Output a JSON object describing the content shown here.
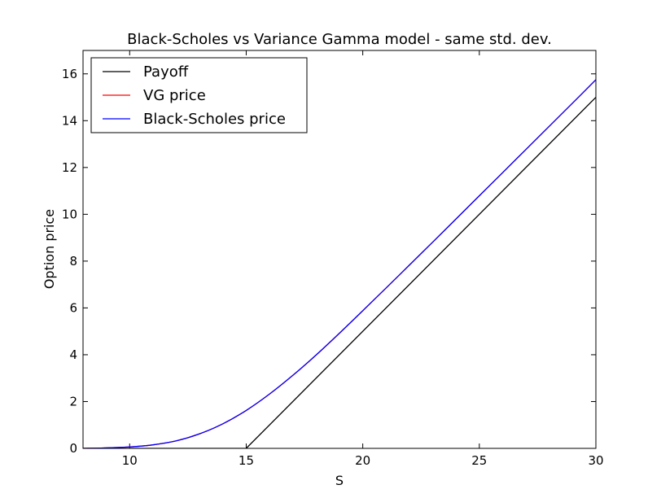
{
  "chart_data": {
    "type": "line",
    "title": "Black-Scholes vs Variance Gamma model - same std. dev.",
    "xlabel": "S",
    "ylabel": "Option price",
    "xlim": [
      8,
      30
    ],
    "ylim": [
      0,
      17
    ],
    "x_ticks": [
      10,
      15,
      20,
      25,
      30
    ],
    "y_ticks": [
      0,
      2,
      4,
      6,
      8,
      10,
      12,
      14,
      16
    ],
    "legend_position": "top-left",
    "grid": false,
    "strike": 15,
    "series": [
      {
        "name": "Payoff",
        "color": "#000000",
        "x": [
          8,
          15,
          30
        ],
        "y": [
          0,
          0,
          15
        ]
      },
      {
        "name": "VG price",
        "color": "#ff0000",
        "x": [
          8,
          9,
          10,
          11,
          12,
          13,
          14,
          15,
          16,
          17,
          18,
          19,
          20,
          21,
          22,
          23,
          24,
          25,
          26,
          27,
          28,
          29,
          30
        ],
        "y": [
          0.0,
          0.02,
          0.06,
          0.15,
          0.32,
          0.62,
          1.05,
          1.62,
          2.32,
          3.12,
          3.99,
          4.92,
          5.88,
          6.85,
          7.83,
          8.81,
          9.8,
          10.79,
          11.78,
          12.77,
          13.76,
          14.75,
          15.75
        ]
      },
      {
        "name": "Black-Scholes price",
        "color": "#0000ff",
        "x": [
          8,
          9,
          10,
          11,
          12,
          13,
          14,
          15,
          16,
          17,
          18,
          19,
          20,
          21,
          22,
          23,
          24,
          25,
          26,
          27,
          28,
          29,
          30
        ],
        "y": [
          0.0,
          0.02,
          0.06,
          0.15,
          0.32,
          0.62,
          1.05,
          1.62,
          2.32,
          3.12,
          3.99,
          4.92,
          5.88,
          6.85,
          7.83,
          8.81,
          9.8,
          10.79,
          11.78,
          12.77,
          13.76,
          14.75,
          15.75
        ]
      }
    ]
  }
}
